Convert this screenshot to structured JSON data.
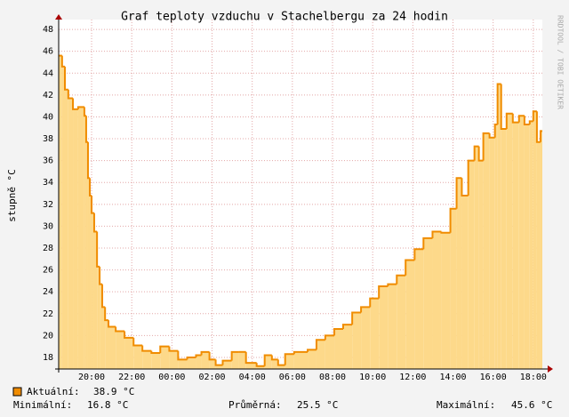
{
  "chart_data": {
    "type": "step-area",
    "title": "Graf teploty vzduchu v Stachelbergu za 24 hodin",
    "y_label": "stupně °C",
    "watermark": "RRDTOOL / TOBI OETIKER",
    "grid": true,
    "xlim": [
      0.36,
      24.45
    ],
    "ylim": [
      16.94,
      48.9
    ],
    "yticks": [
      18,
      20,
      22,
      24,
      26,
      28,
      30,
      32,
      34,
      36,
      38,
      40,
      42,
      44,
      46,
      48
    ],
    "xticks": [
      {
        "value": 2,
        "label": "20:00"
      },
      {
        "value": 4,
        "label": "22:00"
      },
      {
        "value": 6,
        "label": "00:00"
      },
      {
        "value": 8,
        "label": "02:00"
      },
      {
        "value": 10,
        "label": "04:00"
      },
      {
        "value": 12,
        "label": "06:00"
      },
      {
        "value": 14,
        "label": "08:00"
      },
      {
        "value": 16,
        "label": "10:00"
      },
      {
        "value": 18,
        "label": "12:00"
      },
      {
        "value": 20,
        "label": "14:00"
      },
      {
        "value": 22,
        "label": "16:00"
      },
      {
        "value": 24,
        "label": "18:00"
      }
    ],
    "x": [
      0.36,
      0.53,
      0.67,
      0.84,
      1.07,
      1.33,
      1.64,
      1.73,
      1.82,
      1.91,
      2.0,
      2.13,
      2.27,
      2.4,
      2.53,
      2.67,
      2.84,
      3.2,
      3.64,
      4.09,
      4.53,
      4.98,
      5.42,
      5.87,
      6.31,
      6.76,
      7.2,
      7.47,
      7.87,
      8.18,
      8.53,
      8.98,
      9.33,
      9.69,
      10.22,
      10.62,
      10.98,
      11.29,
      11.64,
      12.09,
      12.76,
      13.2,
      13.64,
      14.09,
      14.53,
      14.98,
      15.42,
      15.87,
      16.31,
      16.76,
      17.2,
      17.64,
      18.09,
      18.53,
      18.98,
      19.42,
      19.87,
      20.18,
      20.44,
      20.76,
      21.07,
      21.29,
      21.51,
      21.82,
      22.09,
      22.22,
      22.4,
      22.67,
      22.98,
      23.29,
      23.56,
      23.82,
      24.0,
      24.18,
      24.36
    ],
    "series": [
      {
        "name": "Aktuální:",
        "color": "#f08c00",
        "fill": "#fdd98a",
        "values": [
          45.6,
          44.6,
          42.5,
          41.7,
          40.7,
          40.9,
          40.1,
          37.7,
          34.4,
          32.8,
          31.2,
          29.5,
          26.3,
          24.7,
          22.6,
          21.4,
          20.8,
          20.4,
          19.8,
          19.1,
          18.6,
          18.4,
          19.0,
          18.6,
          17.8,
          18.0,
          18.2,
          18.5,
          17.8,
          17.3,
          17.7,
          18.5,
          18.5,
          17.5,
          17.2,
          18.2,
          17.8,
          17.3,
          18.3,
          18.5,
          18.7,
          19.6,
          20.0,
          20.6,
          21.0,
          22.1,
          22.6,
          23.4,
          24.5,
          24.7,
          25.5,
          26.9,
          27.9,
          28.9,
          29.5,
          29.4,
          31.6,
          34.4,
          32.8,
          36.0,
          37.3,
          36.0,
          38.5,
          38.1,
          39.3,
          43.0,
          38.9,
          40.3,
          39.5,
          40.1,
          39.3,
          39.6,
          40.5,
          37.7,
          38.7
        ]
      }
    ],
    "stats": [
      {
        "label": "Aktuální:",
        "value": "38.9 °C"
      },
      {
        "label": "Minimální:",
        "value": "16.8 °C"
      },
      {
        "label": "Průměrná:",
        "value": "25.5 °C"
      },
      {
        "label": "Maximální:",
        "value": "45.6 °C"
      }
    ]
  }
}
